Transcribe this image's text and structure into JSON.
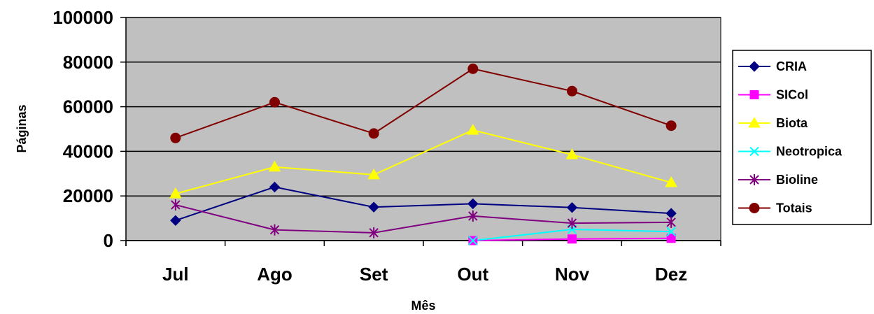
{
  "chart_data": {
    "type": "line",
    "xlabel": "Mês",
    "ylabel": "Páginas",
    "categories": [
      "Jul",
      "Ago",
      "Set",
      "Out",
      "Nov",
      "Dez"
    ],
    "ylim": [
      0,
      100000
    ],
    "yticks": [
      0,
      20000,
      40000,
      60000,
      80000,
      100000
    ],
    "ytick_labels": [
      "0",
      "20000",
      "40000",
      "60000",
      "80000",
      "100000"
    ],
    "grid": "horizontal",
    "plot_background": "#c0c0c0",
    "legend_position": "right",
    "series": [
      {
        "name": "CRIA",
        "color": "#000080",
        "marker": "diamond",
        "values": [
          9000,
          24000,
          15000,
          16500,
          14800,
          12200
        ]
      },
      {
        "name": "SICol",
        "color": "#ff00ff",
        "marker": "square",
        "values": [
          null,
          null,
          null,
          0,
          700,
          1000
        ]
      },
      {
        "name": "Biota",
        "color": "#ffff00",
        "marker": "triangle",
        "values": [
          21000,
          33000,
          29500,
          49500,
          38500,
          26000
        ]
      },
      {
        "name": "Neotropica",
        "color": "#00ffff",
        "marker": "x",
        "values": [
          null,
          null,
          null,
          0,
          5000,
          4000
        ]
      },
      {
        "name": "Bioline",
        "color": "#800080",
        "marker": "star",
        "values": [
          16000,
          4800,
          3500,
          11000,
          7800,
          8200
        ]
      },
      {
        "name": "Totais",
        "color": "#800000",
        "marker": "circle",
        "values": [
          46000,
          62000,
          48000,
          77000,
          67000,
          51500
        ]
      }
    ]
  }
}
